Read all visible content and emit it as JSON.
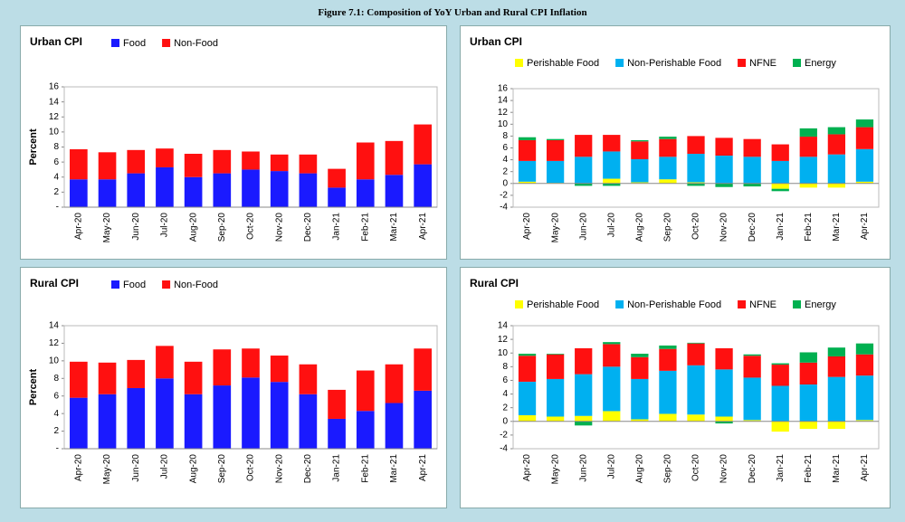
{
  "figure_title": "Figure 7.1: Composition of YoY Urban and Rural CPI Inflation",
  "chart_data": [
    {
      "type": "stacked_bar",
      "title": "Urban CPI",
      "ylabel": "Percent",
      "categories": [
        "Apr-20",
        "May-20",
        "Jun-20",
        "Jul-20",
        "Aug-20",
        "Sep-20",
        "Oct-20",
        "Nov-20",
        "Dec-20",
        "Jan-21",
        "Feb-21",
        "Mar-21",
        "Apr-21"
      ],
      "series": [
        {
          "name": "Food",
          "color": "#1a1aff",
          "values": [
            3.7,
            3.7,
            4.5,
            5.3,
            4.0,
            4.5,
            5.0,
            4.8,
            4.5,
            2.6,
            3.7,
            4.3,
            5.7
          ]
        },
        {
          "name": "Non-Food",
          "color": "#ff1010",
          "values": [
            4.0,
            3.6,
            3.1,
            2.5,
            3.1,
            3.1,
            2.4,
            2.2,
            2.5,
            2.5,
            4.9,
            4.5,
            5.3
          ]
        }
      ],
      "ylim": [
        0,
        16
      ],
      "yticks": [
        {
          "value": 0,
          "label": "-"
        },
        2,
        4,
        6,
        8,
        10,
        12,
        14,
        16
      ]
    },
    {
      "type": "stacked_bar",
      "title": "Urban CPI",
      "ylabel": null,
      "categories": [
        "Apr-20",
        "May-20",
        "Jun-20",
        "Jul-20",
        "Aug-20",
        "Sep-20",
        "Oct-20",
        "Nov-20",
        "Dec-20",
        "Jan-21",
        "Feb-21",
        "Mar-21",
        "Apr-21"
      ],
      "series": [
        {
          "name": "Perishable Food",
          "color": "#ffff00",
          "values": [
            0.3,
            0.1,
            0.0,
            0.8,
            0.2,
            0.7,
            0.2,
            0.0,
            0.0,
            -0.9,
            -0.7,
            -0.7,
            0.3
          ]
        },
        {
          "name": "Non-Perishable Food",
          "color": "#00b0f0",
          "values": [
            3.5,
            3.7,
            4.5,
            4.6,
            3.9,
            3.8,
            4.8,
            4.7,
            4.5,
            3.8,
            4.5,
            4.9,
            5.5
          ]
        },
        {
          "name": "NFNE",
          "color": "#ff1010",
          "values": [
            3.5,
            3.5,
            3.7,
            2.8,
            3.0,
            3.0,
            3.0,
            3.0,
            3.0,
            2.8,
            3.4,
            3.4,
            3.7
          ]
        },
        {
          "name": "Energy",
          "color": "#00b050",
          "values": [
            0.5,
            0.2,
            -0.4,
            -0.4,
            0.2,
            0.4,
            -0.4,
            -0.6,
            -0.5,
            -0.4,
            1.4,
            1.2,
            1.3
          ]
        }
      ],
      "ylim": [
        -4,
        16
      ],
      "yticks": [
        -4,
        -2,
        0,
        2,
        4,
        6,
        8,
        10,
        12,
        14,
        16
      ]
    },
    {
      "type": "stacked_bar",
      "title": "Rural CPI",
      "ylabel": "Percent",
      "categories": [
        "Apr-20",
        "May-20",
        "Jun-20",
        "Jul-20",
        "Aug-20",
        "Sep-20",
        "Oct-20",
        "Nov-20",
        "Dec-20",
        "Jan-21",
        "Feb-21",
        "Mar-21",
        "Apr-21"
      ],
      "series": [
        {
          "name": "Food",
          "color": "#1a1aff",
          "values": [
            5.8,
            6.2,
            6.9,
            8.0,
            6.2,
            7.2,
            8.1,
            7.6,
            6.2,
            3.4,
            4.3,
            5.2,
            6.6
          ]
        },
        {
          "name": "Non-Food",
          "color": "#ff1010",
          "values": [
            4.1,
            3.6,
            3.2,
            3.7,
            3.7,
            4.1,
            3.3,
            3.0,
            3.4,
            3.3,
            4.6,
            4.4,
            4.8
          ]
        }
      ],
      "ylim": [
        0,
        14
      ],
      "yticks": [
        {
          "value": 0,
          "label": "-"
        },
        2,
        4,
        6,
        8,
        10,
        12,
        14
      ]
    },
    {
      "type": "stacked_bar",
      "title": "Rural CPI",
      "ylabel": null,
      "categories": [
        "Apr-20",
        "May-20",
        "Jun-20",
        "Jul-20",
        "Aug-20",
        "Sep-20",
        "Oct-20",
        "Nov-20",
        "Dec-20",
        "Jan-21",
        "Feb-21",
        "Mar-21",
        "Apr-21"
      ],
      "series": [
        {
          "name": "Perishable Food",
          "color": "#ffff00",
          "values": [
            0.9,
            0.7,
            0.8,
            1.5,
            0.3,
            1.1,
            1.0,
            0.7,
            0.2,
            -1.5,
            -1.1,
            -1.1,
            0.2
          ]
        },
        {
          "name": "Non-Perishable Food",
          "color": "#00b0f0",
          "values": [
            4.9,
            5.5,
            6.1,
            6.5,
            5.9,
            6.3,
            7.2,
            6.9,
            6.2,
            5.2,
            5.4,
            6.5,
            6.5
          ]
        },
        {
          "name": "NFNE",
          "color": "#ff1010",
          "values": [
            3.8,
            3.6,
            3.8,
            3.3,
            3.2,
            3.2,
            3.2,
            3.1,
            3.2,
            3.1,
            3.2,
            3.0,
            3.1
          ]
        },
        {
          "name": "Energy",
          "color": "#00b050",
          "values": [
            0.3,
            0.1,
            -0.6,
            0.3,
            0.5,
            0.5,
            0.1,
            -0.3,
            0.2,
            0.2,
            1.5,
            1.3,
            1.6
          ]
        }
      ],
      "ylim": [
        -4,
        14
      ],
      "yticks": [
        -4,
        -2,
        0,
        2,
        4,
        6,
        8,
        10,
        12,
        14
      ]
    }
  ]
}
